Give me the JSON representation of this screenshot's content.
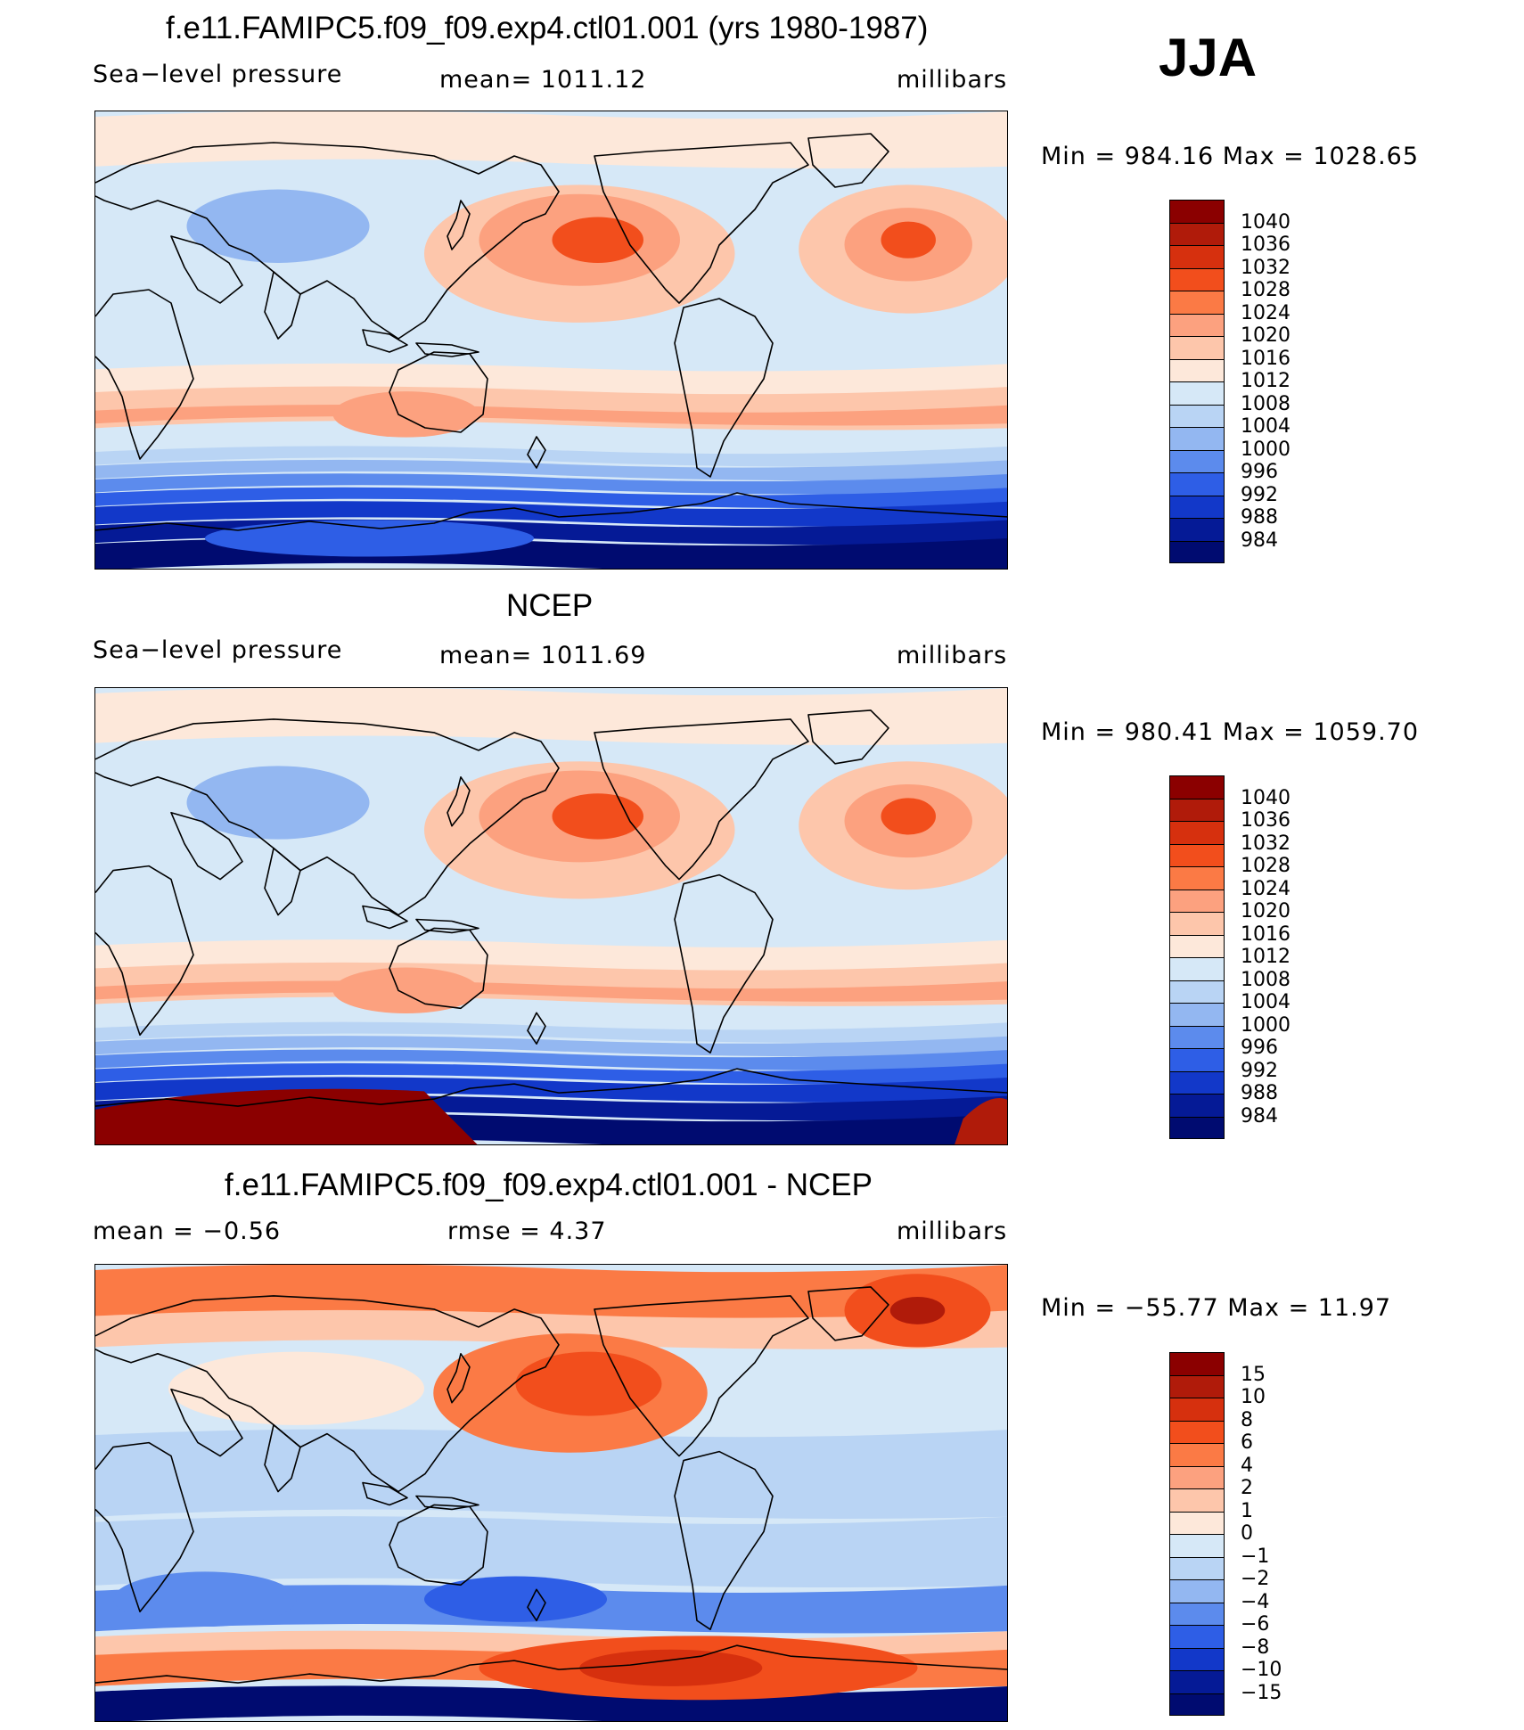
{
  "season": "JJA",
  "panels": [
    {
      "title": "f.e11.FAMIPC5.f09_f09.exp4.ctl01.001 (yrs 1980-1987)",
      "left_label": "Sea−level pressure",
      "center_label": "mean=  1011.12",
      "units": "millibars",
      "minmax": "Min  =  984.16  Max  =  1028.65",
      "scale": "abs",
      "colorbar": {
        "labels": [
          "1040",
          "1036",
          "1032",
          "1028",
          "1024",
          "1020",
          "1016",
          "1012",
          "1008",
          "1004",
          "1000",
          "996",
          "992",
          "988",
          "984"
        ],
        "colors": [
          "#8b0000",
          "#b01b0a",
          "#d6300e",
          "#f24e1c",
          "#fb7a45",
          "#fca17f",
          "#fdc6ab",
          "#fde8da",
          "#d6e8f7",
          "#b9d4f4",
          "#93b7f1",
          "#5c8bed",
          "#2e5ee6",
          "#1238c9",
          "#051a96",
          "#000b70"
        ]
      }
    },
    {
      "title": "NCEP",
      "left_label": "Sea−level pressure",
      "center_label": "mean=  1011.69",
      "units": "millibars",
      "minmax": "Min  =  980.41  Max  =  1059.70",
      "scale": "abs",
      "colorbar": {
        "labels": [
          "1040",
          "1036",
          "1032",
          "1028",
          "1024",
          "1020",
          "1016",
          "1012",
          "1008",
          "1004",
          "1000",
          "996",
          "992",
          "988",
          "984"
        ],
        "colors": [
          "#8b0000",
          "#b01b0a",
          "#d6300e",
          "#f24e1c",
          "#fb7a45",
          "#fca17f",
          "#fdc6ab",
          "#fde8da",
          "#d6e8f7",
          "#b9d4f4",
          "#93b7f1",
          "#5c8bed",
          "#2e5ee6",
          "#1238c9",
          "#051a96",
          "#000b70"
        ]
      }
    },
    {
      "title": "f.e11.FAMIPC5.f09_f09.exp4.ctl01.001 - NCEP",
      "left_label": "mean  =    −0.56",
      "center_label": "rmse  =     4.37",
      "units": "millibars",
      "minmax": "Min  =  −55.77  Max  =    11.97",
      "scale": "diff",
      "colorbar": {
        "labels": [
          "15",
          "10",
          "8",
          "6",
          "4",
          "2",
          "1",
          "0",
          "−1",
          "−2",
          "−4",
          "−6",
          "−8",
          "−10",
          "−15"
        ],
        "colors": [
          "#8b0000",
          "#b01b0a",
          "#d6300e",
          "#f24e1c",
          "#fb7a45",
          "#fca17f",
          "#fdc6ab",
          "#fde8da",
          "#d6e8f7",
          "#b9d4f4",
          "#93b7f1",
          "#5c8bed",
          "#2e5ee6",
          "#1238c9",
          "#051a96",
          "#000b70"
        ]
      }
    }
  ]
}
